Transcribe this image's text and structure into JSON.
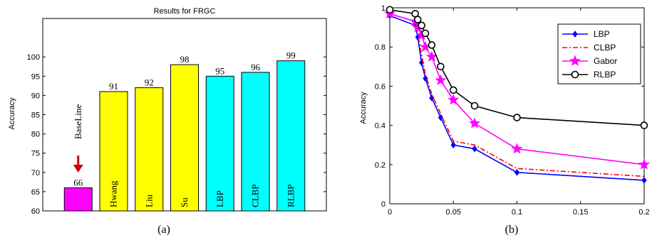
{
  "chart_data": [
    {
      "type": "bar",
      "title": "Results for FRGC",
      "ylabel": "Accuracy",
      "xlabel": "",
      "ylim": [
        60,
        110
      ],
      "yticks": [
        60,
        65,
        70,
        75,
        80,
        85,
        90,
        95,
        100
      ],
      "categories": [
        "BaseLine",
        "Hwang",
        "Liu",
        "Su",
        "LBP",
        "CLBP",
        "RLBP"
      ],
      "values": [
        66,
        91,
        92,
        98,
        95,
        96,
        99
      ],
      "value_labels": [
        "66",
        "91",
        "92",
        "98",
        "95",
        "96",
        "99"
      ],
      "colors": [
        "#ff00ff",
        "#ffff00",
        "#ffff00",
        "#ffff00",
        "#00ffff",
        "#00ffff",
        "#00ffff"
      ],
      "arrow_color": "#cc0000",
      "caption": "(a)"
    },
    {
      "type": "line",
      "title": "",
      "ylabel": "Accuracy",
      "xlabel": "",
      "xlim": [
        0,
        0.2
      ],
      "ylim": [
        0,
        1
      ],
      "xticks": [
        "0",
        "0.05",
        "0.1",
        "0.15",
        "0.2"
      ],
      "yticks": [
        "0",
        "0.2",
        "0.4",
        "0.6",
        "0.8",
        "1"
      ],
      "x": [
        0,
        0.02,
        0.022,
        0.025,
        0.028,
        0.033,
        0.04,
        0.05,
        0.0667,
        0.1,
        0.2
      ],
      "series": [
        {
          "name": "LBP",
          "color": "#0000ff",
          "marker": "diamond",
          "dash": "solid",
          "values": [
            0.96,
            0.91,
            0.85,
            0.72,
            0.64,
            0.54,
            0.44,
            0.3,
            0.28,
            0.16,
            0.12
          ]
        },
        {
          "name": "CLBP",
          "color": "#ff0000",
          "marker": "none",
          "dash": "dashdot",
          "values": [
            0.97,
            0.93,
            0.87,
            0.76,
            0.66,
            0.56,
            0.46,
            0.32,
            0.3,
            0.18,
            0.14
          ]
        },
        {
          "name": "Gabor",
          "color": "#ff00ff",
          "marker": "star",
          "dash": "solid",
          "values": [
            0.97,
            0.93,
            0.9,
            0.86,
            0.8,
            0.75,
            0.63,
            0.53,
            0.41,
            0.28,
            0.2
          ]
        },
        {
          "name": "RLBP",
          "color": "#000000",
          "marker": "circle",
          "dash": "solid",
          "values": [
            0.99,
            0.97,
            0.94,
            0.91,
            0.87,
            0.81,
            0.7,
            0.58,
            0.5,
            0.44,
            0.4
          ]
        }
      ],
      "legend": "top-right",
      "caption": "(b)"
    }
  ]
}
